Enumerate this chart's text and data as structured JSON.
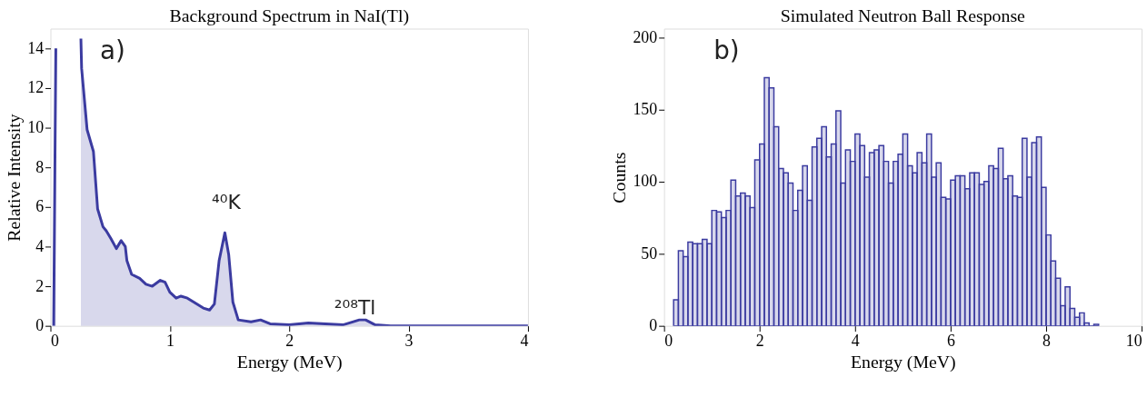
{
  "chart_data": [
    {
      "type": "area",
      "title": "Background Spectrum in NaI(Tl)",
      "xlabel": "Energy (MeV)",
      "ylabel": "Relative Intensity",
      "color": "#3b3ba0",
      "x": [
        0.027,
        0.036,
        0.045,
        0.048,
        0.253,
        0.255,
        0.261,
        0.307,
        0.36,
        0.395,
        0.44,
        0.467,
        0.507,
        0.552,
        0.592,
        0.627,
        0.64,
        0.68,
        0.747,
        0.8,
        0.853,
        0.92,
        0.96,
        1.0,
        1.053,
        1.093,
        1.147,
        1.2,
        1.28,
        1.333,
        1.373,
        1.413,
        1.461,
        1.493,
        1.528,
        1.573,
        1.68,
        1.76,
        1.84,
        2.0,
        2.16,
        2.45,
        2.587,
        2.64,
        2.72,
        2.85,
        4.0
      ],
      "values": [
        0,
        7,
        14,
        null,
        null,
        14.5,
        13.0,
        9.9,
        8.8,
        5.9,
        5.0,
        4.8,
        4.4,
        3.9,
        4.3,
        4.0,
        3.3,
        2.6,
        2.4,
        2.1,
        2.0,
        2.3,
        2.2,
        1.7,
        1.4,
        1.5,
        1.4,
        1.2,
        0.9,
        0.8,
        1.1,
        3.3,
        4.7,
        3.6,
        1.2,
        0.3,
        0.2,
        0.3,
        0.1,
        0.05,
        0.15,
        0.05,
        0.3,
        0.3,
        0.05,
        0,
        0
      ],
      "xlim": [
        0,
        4
      ],
      "xticks": [
        0,
        1,
        2,
        3,
        4
      ],
      "ylim": [
        0,
        15
      ],
      "yticks": [
        0,
        2,
        4,
        6,
        8,
        10,
        12,
        14
      ],
      "grid": false,
      "annotations": [
        "a)",
        "⁴⁰K",
        "²⁰⁸Tl"
      ]
    },
    {
      "type": "histogram",
      "title": "Simulated Neutron Ball Response",
      "xlabel": "Energy (MeV)",
      "ylabel": "Counts",
      "color": "#3b3ba0",
      "bins": [
        0.2,
        0.3,
        0.4,
        0.5,
        0.6,
        0.7,
        0.8,
        0.9,
        1.0,
        1.1,
        1.2,
        1.3,
        1.4,
        1.5,
        1.6,
        1.7,
        1.8,
        1.9,
        2.0,
        2.1,
        2.2,
        2.3,
        2.4,
        2.5,
        2.6,
        2.7,
        2.8,
        2.9,
        3.0,
        3.1,
        3.2,
        3.3,
        3.4,
        3.5,
        3.6,
        3.7,
        3.8,
        3.9,
        4.0,
        4.1,
        4.2,
        4.3,
        4.4,
        4.5,
        4.6,
        4.7,
        4.8,
        4.9,
        5.0,
        5.1,
        5.2,
        5.3,
        5.4,
        5.5,
        5.6,
        5.7,
        5.8,
        5.9,
        6.0,
        6.1,
        6.2,
        6.3,
        6.4,
        6.5,
        6.6,
        6.7,
        6.8,
        6.9,
        7.0,
        7.1,
        7.2,
        7.3,
        7.4,
        7.5,
        7.6,
        7.7,
        7.8,
        7.9,
        8.0,
        8.1,
        8.2,
        8.3,
        8.4,
        8.5,
        8.6,
        8.7,
        8.8,
        8.9,
        9.0,
        9.1
      ],
      "values": [
        18,
        52,
        48,
        58,
        57,
        57,
        60,
        57,
        80,
        79,
        75,
        80,
        101,
        90,
        92,
        90,
        82,
        115,
        126,
        172,
        165,
        138,
        109,
        106,
        99,
        80,
        94,
        111,
        87,
        124,
        130,
        138,
        117,
        126,
        149,
        99,
        122,
        114,
        133,
        125,
        103,
        120,
        122,
        125,
        114,
        99,
        114,
        119,
        133,
        111,
        106,
        120,
        113,
        133,
        103,
        113,
        89,
        88,
        101,
        104,
        104,
        95,
        106,
        106,
        98,
        100,
        111,
        109,
        123,
        102,
        104,
        90,
        89,
        130,
        103,
        127,
        131,
        96,
        63,
        45,
        33,
        14,
        27,
        12,
        6,
        9,
        2,
        0,
        1
      ],
      "xlim": [
        0,
        10
      ],
      "xticks": [
        0,
        2,
        4,
        6,
        8,
        10
      ],
      "ylim": [
        0,
        206
      ],
      "yticks": [
        0,
        50,
        100,
        150,
        200
      ],
      "grid": false,
      "annotations": [
        "b)"
      ]
    }
  ]
}
